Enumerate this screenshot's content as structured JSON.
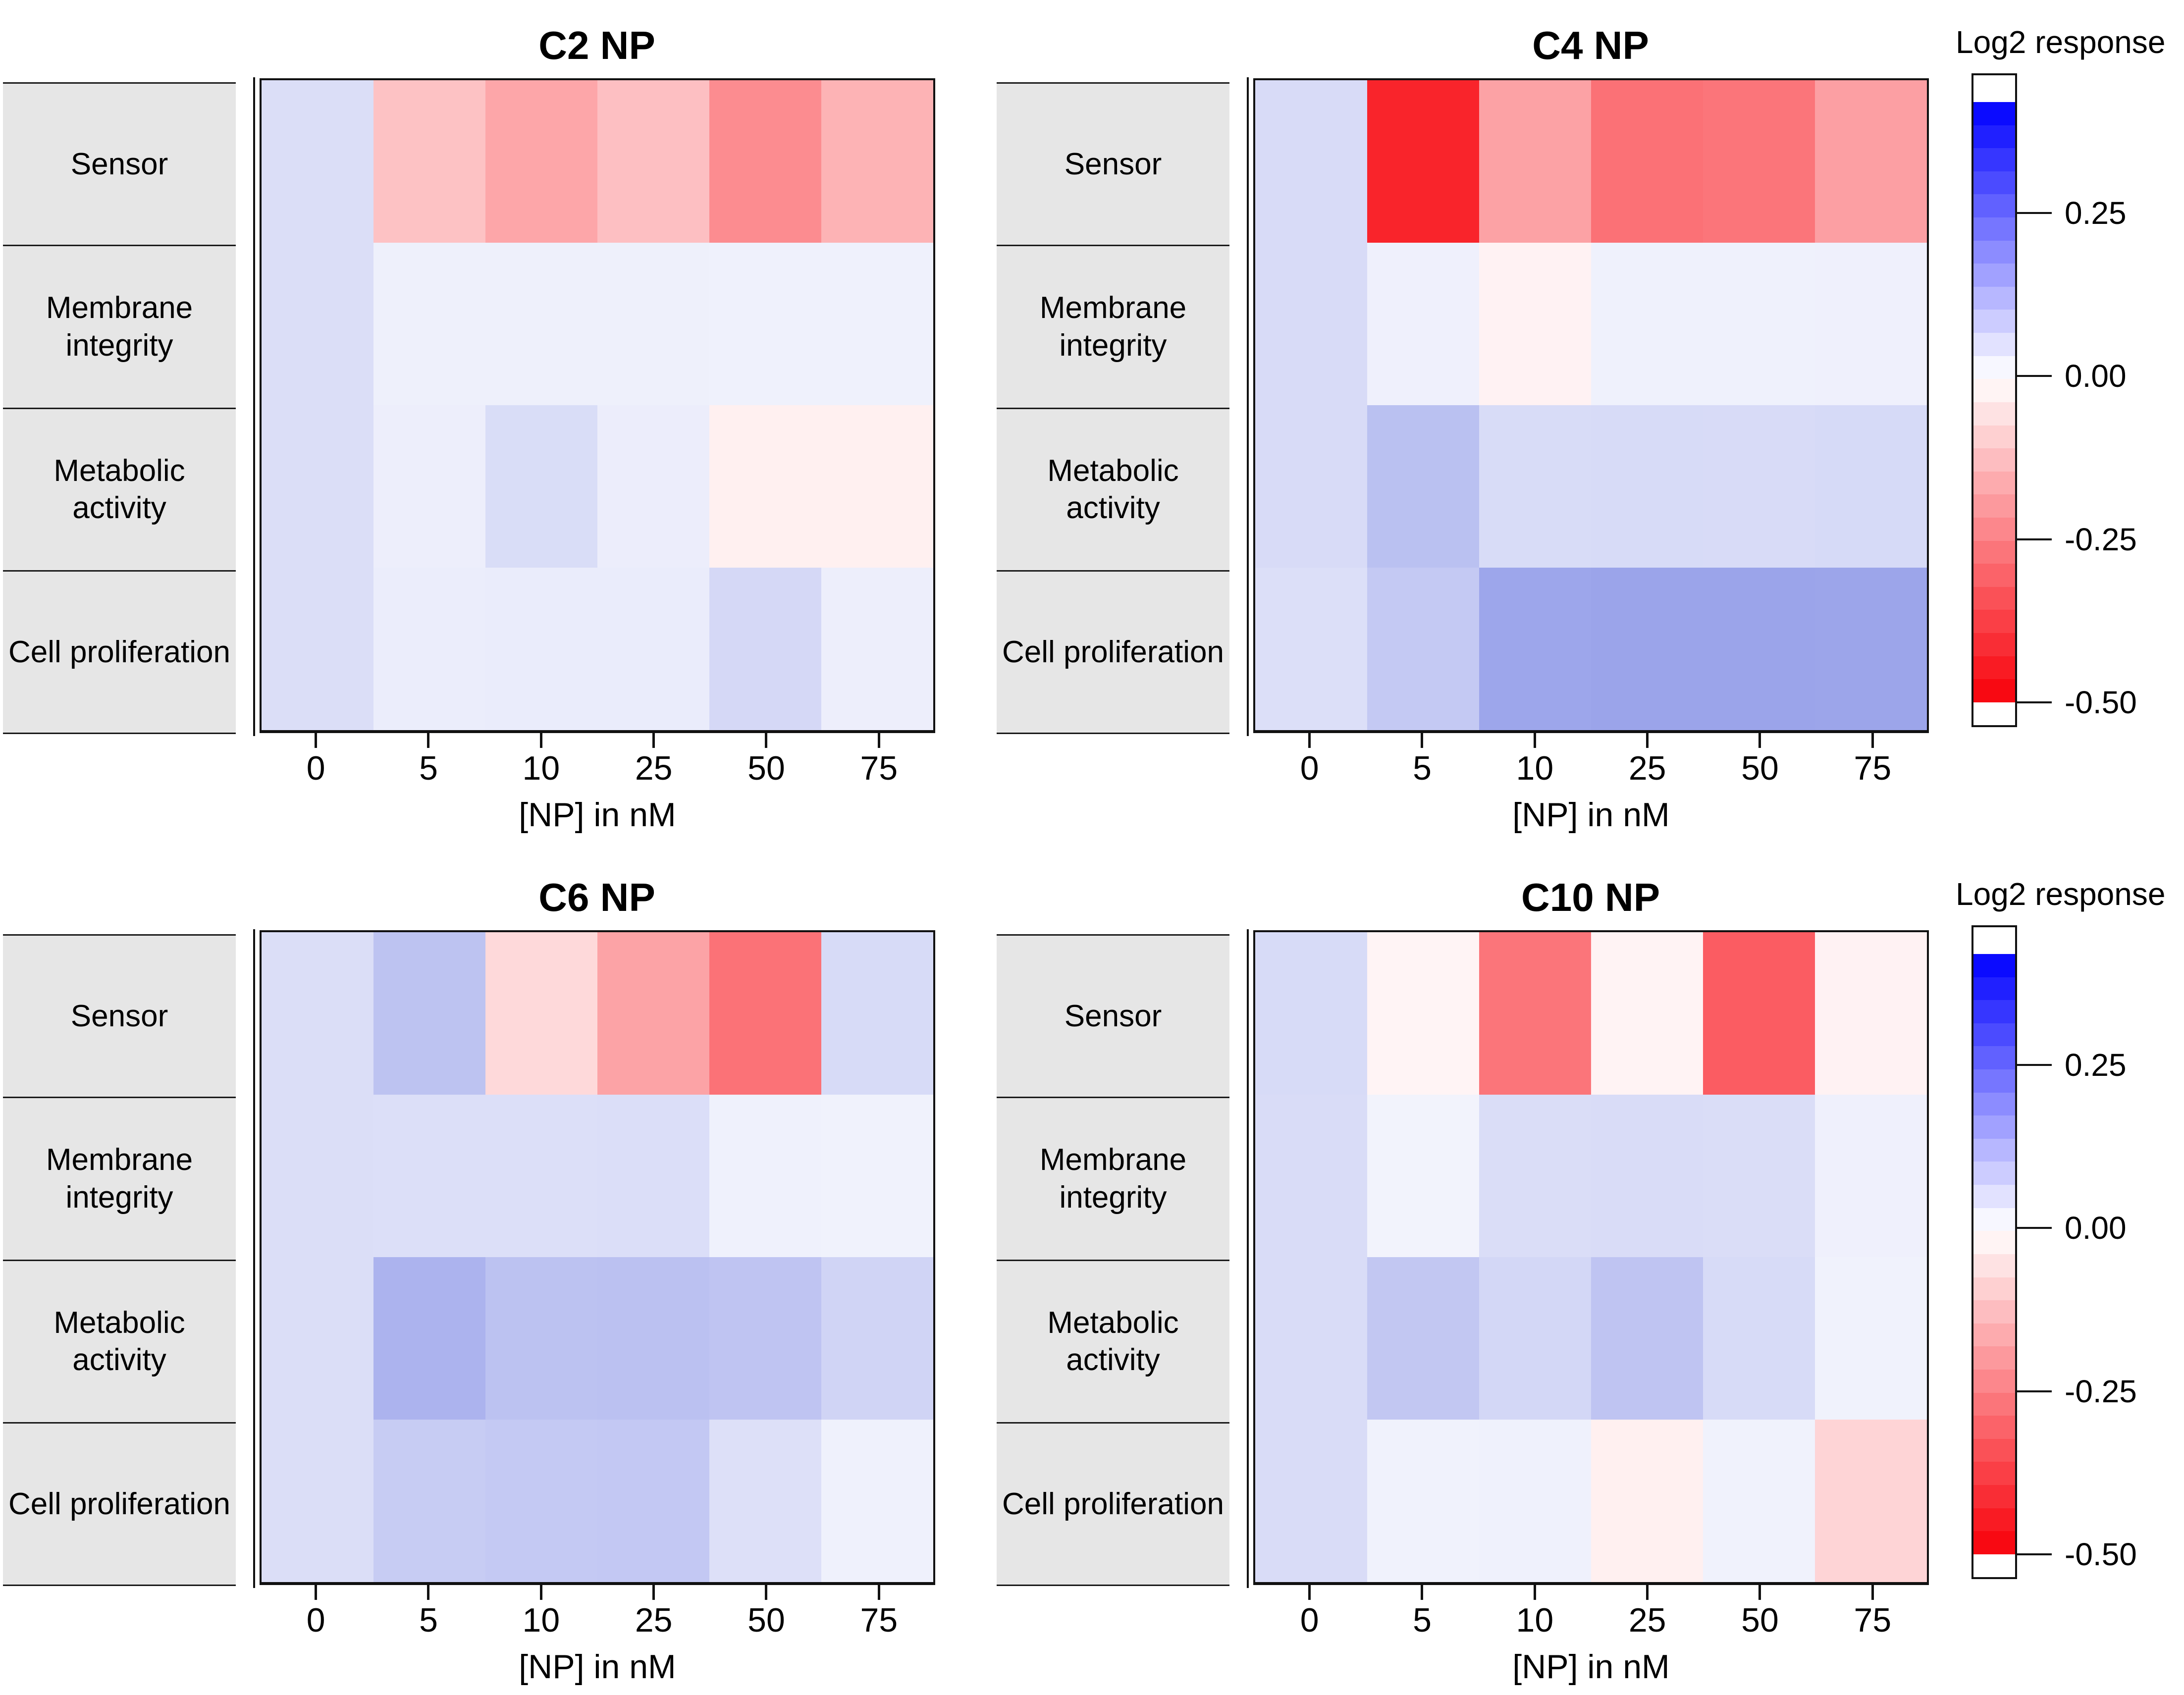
{
  "legend": {
    "title": "Log2 response",
    "tick_labels": [
      "0.25",
      "0.00",
      "-0.25",
      "-0.50"
    ],
    "tick_values": [
      0.25,
      0.0,
      -0.25,
      -0.5
    ],
    "vmax": 0.42,
    "vmin": -0.5,
    "num_bands": 26,
    "position": "right"
  },
  "palette": {
    "zero_color": "#ffffff",
    "cell_positive_end": [
      0,
      23,
      202
    ],
    "cell_negative_end": [
      248,
      0,
      9
    ],
    "bar_positive_end": [
      0,
      0,
      255
    ],
    "bar_negative_end": [
      248,
      0,
      9
    ],
    "row_label_bg": "#e6e6e6",
    "frame_color": "#111111"
  },
  "chart_data": [
    {
      "type": "heatmap",
      "title": "C2 NP",
      "xlabel": "[NP] in nM",
      "columns": [
        "0",
        "5",
        "10",
        "25",
        "50",
        "75"
      ],
      "rows": [
        "Sensor",
        "Membrane integrity",
        "Metabolic activity",
        "Cell proliferation"
      ],
      "values": [
        [
          0.06,
          -0.12,
          -0.175,
          -0.125,
          -0.225,
          -0.15
        ],
        [
          0.06,
          0.028,
          0.028,
          0.028,
          0.026,
          0.026
        ],
        [
          0.06,
          0.03,
          0.062,
          0.032,
          -0.03,
          -0.03
        ],
        [
          0.06,
          0.033,
          0.035,
          0.035,
          0.07,
          0.03
        ]
      ]
    },
    {
      "type": "heatmap",
      "title": "C4 NP",
      "xlabel": "[NP] in nM",
      "columns": [
        "0",
        "5",
        "10",
        "25",
        "50",
        "75"
      ],
      "rows": [
        "Sensor",
        "Membrane integrity",
        "Metabolic activity",
        "Cell proliferation"
      ],
      "values": [
        [
          0.065,
          -0.43,
          -0.183,
          -0.278,
          -0.27,
          -0.188
        ],
        [
          0.065,
          0.027,
          -0.025,
          0.026,
          0.026,
          0.027
        ],
        [
          0.065,
          0.113,
          0.064,
          0.066,
          0.065,
          0.067
        ],
        [
          0.058,
          0.098,
          0.162,
          0.165,
          0.165,
          0.163
        ]
      ]
    },
    {
      "type": "heatmap",
      "title": "C6 NP",
      "xlabel": "[NP] in nM",
      "columns": [
        "0",
        "5",
        "10",
        "25",
        "50",
        "75"
      ],
      "rows": [
        "Sensor",
        "Membrane integrity",
        "Metabolic activity",
        "Cell proliferation"
      ],
      "values": [
        [
          0.06,
          0.108,
          -0.075,
          -0.18,
          -0.277,
          0.066
        ],
        [
          0.06,
          0.058,
          0.058,
          0.059,
          0.026,
          0.024
        ],
        [
          0.06,
          0.137,
          0.111,
          0.112,
          0.106,
          0.077
        ],
        [
          0.06,
          0.093,
          0.098,
          0.099,
          0.056,
          0.026
        ]
      ]
    },
    {
      "type": "heatmap",
      "title": "C10 NP",
      "xlabel": "[NP] in nM",
      "columns": [
        "0",
        "5",
        "10",
        "25",
        "50",
        "75"
      ],
      "rows": [
        "Sensor",
        "Membrane integrity",
        "Metabolic activity",
        "Cell proliferation"
      ],
      "values": [
        [
          0.066,
          -0.021,
          -0.27,
          -0.023,
          -0.32,
          -0.025
        ],
        [
          0.063,
          0.022,
          0.061,
          0.063,
          0.061,
          0.027
        ],
        [
          0.063,
          0.101,
          0.072,
          0.106,
          0.066,
          0.024
        ],
        [
          0.063,
          0.024,
          0.026,
          -0.03,
          0.024,
          -0.084
        ]
      ]
    }
  ]
}
